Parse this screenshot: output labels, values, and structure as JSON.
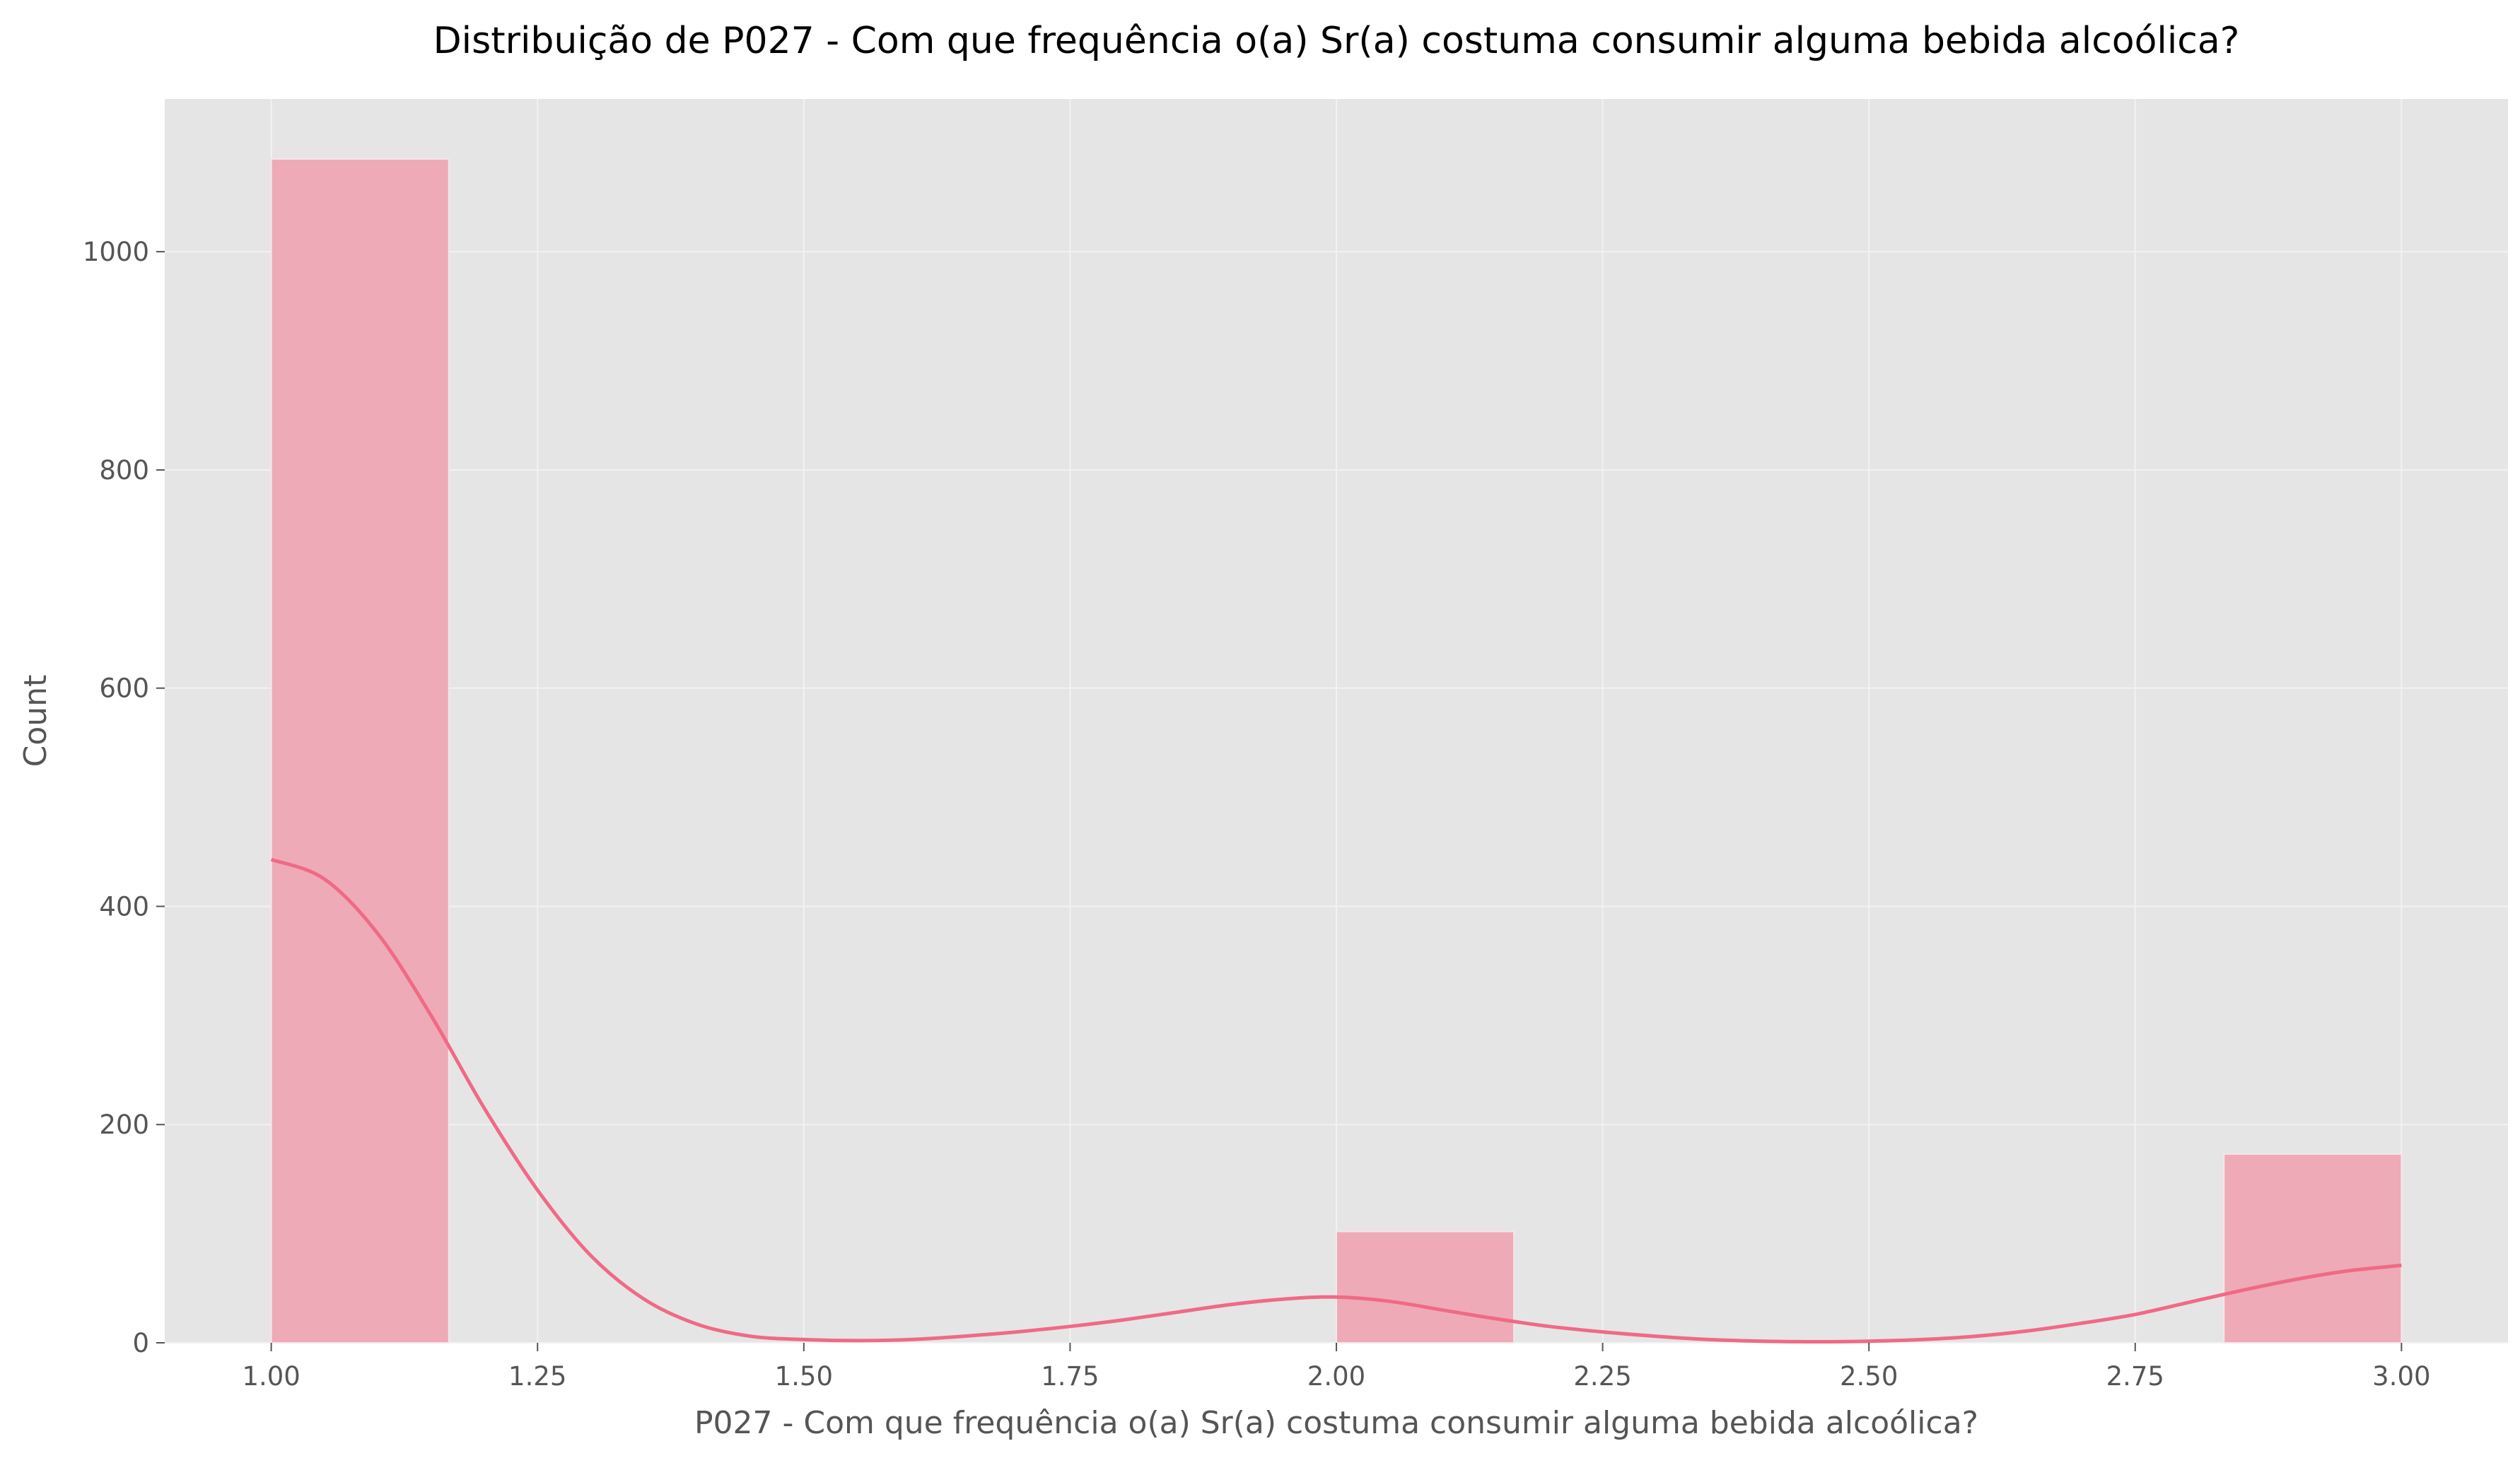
{
  "chart_data": {
    "type": "bar",
    "title": "Distribuição de P027 - Com que frequência o(a) Sr(a) costuma consumir alguma bebida alcoólica?",
    "xlabel": "P027 - Com que frequência o(a) Sr(a) costuma consumir alguma bebida alcoólica?",
    "ylabel": "Count",
    "xlim": [
      0.9,
      3.1
    ],
    "ylim": [
      0,
      1140
    ],
    "xticks": [
      1.0,
      1.25,
      1.5,
      1.75,
      2.0,
      2.25,
      2.5,
      2.75,
      3.0
    ],
    "xtick_labels": [
      "1.00",
      "1.25",
      "1.50",
      "1.75",
      "2.00",
      "2.25",
      "2.50",
      "2.75",
      "3.00"
    ],
    "yticks": [
      0,
      200,
      400,
      600,
      800,
      1000
    ],
    "ytick_labels": [
      "0",
      "200",
      "400",
      "600",
      "800",
      "1000"
    ],
    "grid": true,
    "bars": [
      {
        "x0": 1.0,
        "x1": 1.1667,
        "value": 1085
      },
      {
        "x0": 2.0,
        "x1": 2.1667,
        "value": 102
      },
      {
        "x0": 2.8333,
        "x1": 3.0,
        "value": 173
      }
    ],
    "kde": {
      "x": [
        1.0,
        1.05,
        1.1,
        1.15,
        1.2,
        1.25,
        1.3,
        1.35,
        1.4,
        1.45,
        1.5,
        1.55,
        1.6,
        1.65,
        1.7,
        1.75,
        1.8,
        1.85,
        1.9,
        1.95,
        2.0,
        2.05,
        2.1,
        2.15,
        2.2,
        2.25,
        2.3,
        2.35,
        2.4,
        2.45,
        2.5,
        2.55,
        2.6,
        2.65,
        2.7,
        2.75,
        2.8,
        2.85,
        2.9,
        2.95,
        3.0
      ],
      "y": [
        443,
        425,
        375,
        300,
        215,
        140,
        80,
        40,
        17,
        6,
        3,
        2,
        3,
        6,
        10,
        15,
        21,
        28,
        35,
        40,
        42,
        38,
        30,
        22,
        15,
        10,
        6,
        3,
        1.5,
        1,
        1.5,
        3,
        6,
        11,
        18,
        26,
        37,
        48,
        58,
        66,
        71
      ]
    },
    "colors": {
      "bar_fill": "#eeaab7",
      "bar_edge": "#f5e6e9",
      "kde_line": "#f06a85",
      "plot_bg": "#e5e5e5",
      "grid": "#f2f2f2"
    }
  }
}
